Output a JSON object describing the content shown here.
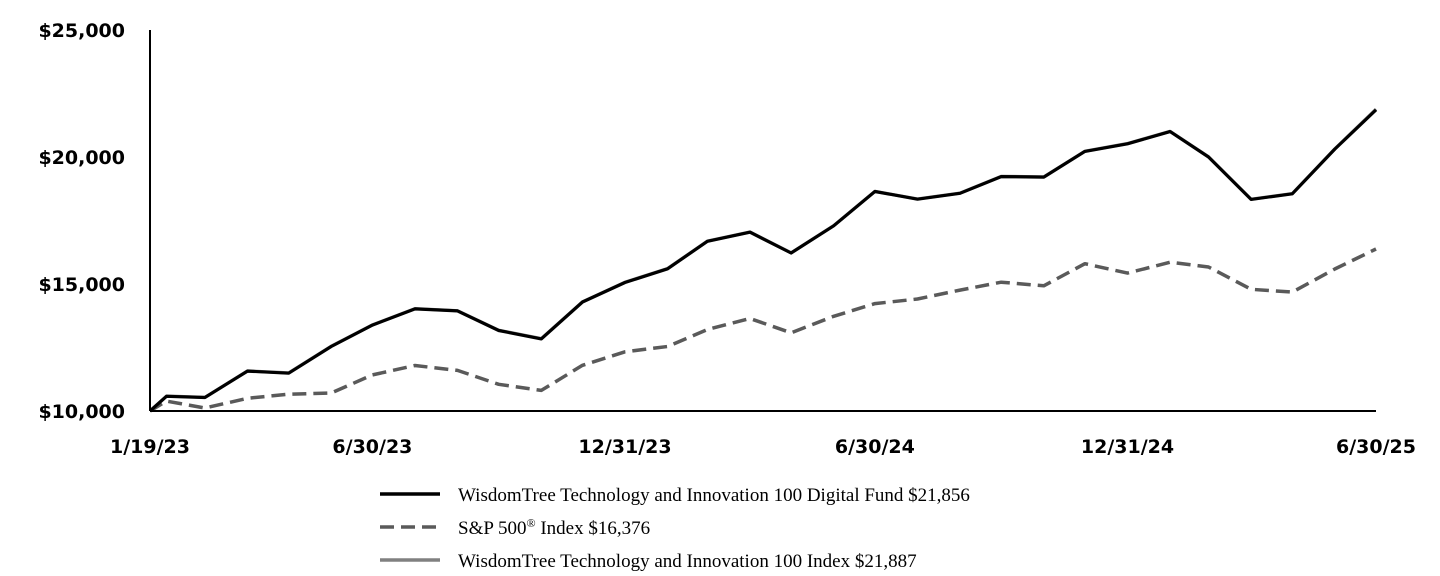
{
  "chart_data": {
    "type": "line",
    "title": "",
    "xlabel": "",
    "ylabel": "",
    "ylim": [
      10000,
      25000
    ],
    "y_ticks": [
      "$10,000",
      "$15,000",
      "$20,000",
      "$25,000"
    ],
    "y_tick_values": [
      10000,
      15000,
      20000,
      25000
    ],
    "x_ticks": [
      "1/19/23",
      "6/30/23",
      "12/31/23",
      "6/30/24",
      "12/31/24",
      "6/30/25"
    ],
    "x_tick_dates": [
      "2023-01-19",
      "2023-06-30",
      "2023-12-31",
      "2024-06-30",
      "2024-12-31",
      "2025-06-30"
    ],
    "x": [
      "2023-01-19",
      "2023-01-31",
      "2023-02-28",
      "2023-03-31",
      "2023-04-30",
      "2023-05-31",
      "2023-06-30",
      "2023-07-31",
      "2023-08-31",
      "2023-09-30",
      "2023-10-31",
      "2023-11-30",
      "2023-12-31",
      "2024-01-31",
      "2024-02-29",
      "2024-03-31",
      "2024-04-30",
      "2024-05-31",
      "2024-06-30",
      "2024-07-31",
      "2024-08-31",
      "2024-09-30",
      "2024-10-31",
      "2024-11-30",
      "2024-12-31",
      "2025-01-31",
      "2025-02-28",
      "2025-03-31",
      "2025-04-30",
      "2025-05-31",
      "2025-06-30"
    ],
    "series": [
      {
        "name": "WisdomTree Technology and Innovation 100 Digital Fund $21,856",
        "color": "#000000",
        "dash": "solid",
        "values": [
          10000,
          10580,
          10530,
          11570,
          11490,
          12540,
          13380,
          14020,
          13940,
          13170,
          12840,
          14290,
          15060,
          15600,
          16680,
          17040,
          16220,
          17290,
          18640,
          18340,
          18570,
          19230,
          19210,
          20220,
          20520,
          21000,
          20000,
          18330,
          18550,
          20310,
          21856
        ]
      },
      {
        "name": "S&P 500® Index $16,376",
        "color": "#5a5a5a",
        "dash": "dashed",
        "values": [
          10000,
          10390,
          10120,
          10500,
          10660,
          10710,
          11420,
          11790,
          11600,
          11050,
          10810,
          11800,
          12330,
          12540,
          13210,
          13640,
          13080,
          13730,
          14230,
          14410,
          14760,
          15070,
          14930,
          15800,
          15430,
          15860,
          15670,
          14790,
          14680,
          15590,
          16376
        ]
      },
      {
        "name": "WisdomTree Technology and Innovation 100 Index $21,887",
        "color": "#808080",
        "dash": "solid",
        "values": [
          10000,
          10590,
          10540,
          11580,
          11500,
          12550,
          13390,
          14030,
          13950,
          13180,
          12850,
          14300,
          15070,
          15610,
          16690,
          17050,
          16230,
          17300,
          18650,
          18350,
          18580,
          19240,
          19220,
          20230,
          20530,
          21010,
          20010,
          18340,
          18560,
          20320,
          21887
        ]
      }
    ],
    "grid": false,
    "legend_position": "bottom"
  }
}
